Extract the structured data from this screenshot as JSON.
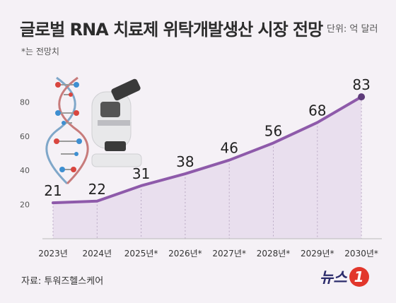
{
  "header": {
    "title": "글로벌 RNA 치료제 위탁개발생산 시장 전망",
    "unit": "단위: 억 달러",
    "note": "*는 전망치"
  },
  "footer": {
    "source": "자료: 투워즈헬스케어",
    "logo_text": "뉴스",
    "logo_mark": "1"
  },
  "colors": {
    "line": "#8e5aaa",
    "area": "#e9dfee",
    "background": "#f5f1f6"
  },
  "chart_data": {
    "type": "area",
    "categories": [
      "2023년",
      "2024년",
      "2025년*",
      "2026년*",
      "2027년*",
      "2028년*",
      "2029년*",
      "2030년*"
    ],
    "values": [
      21,
      22,
      31,
      38,
      46,
      56,
      68,
      83
    ],
    "value_labels": [
      "21",
      "22",
      "31",
      "38",
      "46",
      "56",
      "68",
      "83"
    ],
    "y_ticks": [
      "20",
      "40",
      "60",
      "80"
    ],
    "ylim": [
      0,
      90
    ],
    "grid": false,
    "legend": "none"
  }
}
